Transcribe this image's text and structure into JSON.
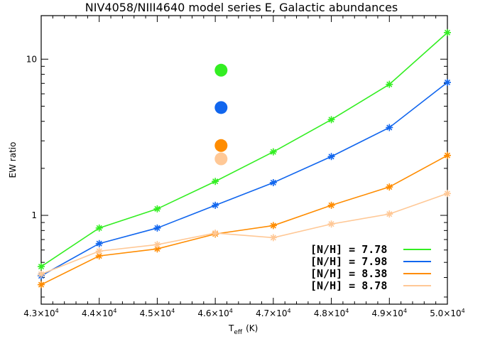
{
  "chart_data": {
    "type": "line",
    "title": "NIV4058/NIII4640 model series E, Galactic abundances",
    "xlabel_main": "T",
    "xlabel_sub": "eff",
    "xlabel_unit": "(K)",
    "ylabel": "EW ratio",
    "x": [
      43000,
      44000,
      45000,
      46000,
      47000,
      48000,
      49000,
      50000
    ],
    "xlim": [
      43000,
      50000
    ],
    "ylim": [
      0.27,
      19
    ],
    "yscale": "log",
    "xtick_labels": [
      {
        "mant": "4.3×10",
        "exp": "4"
      },
      {
        "mant": "4.4×10",
        "exp": "4"
      },
      {
        "mant": "4.5×10",
        "exp": "4"
      },
      {
        "mant": "4.6×10",
        "exp": "4"
      },
      {
        "mant": "4.7×10",
        "exp": "4"
      },
      {
        "mant": "4.8×10",
        "exp": "4"
      },
      {
        "mant": "4.9×10",
        "exp": "4"
      },
      {
        "mant": "5.0×10",
        "exp": "4"
      }
    ],
    "ytick_labels": [
      {
        "value": 1,
        "label": "1"
      },
      {
        "value": 10,
        "label": "10"
      }
    ],
    "series": [
      {
        "name": "[N/H] = 7.78",
        "color": "#33ee22",
        "values": [
          0.47,
          0.83,
          1.1,
          1.65,
          2.55,
          4.1,
          6.9,
          14.8
        ]
      },
      {
        "name": "[N/H] = 7.98",
        "color": "#1166ee",
        "values": [
          0.41,
          0.66,
          0.83,
          1.16,
          1.62,
          2.38,
          3.65,
          7.1
        ]
      },
      {
        "name": "[N/H] = 8.38",
        "color": "#ff8c00",
        "values": [
          0.36,
          0.55,
          0.61,
          0.76,
          0.86,
          1.16,
          1.52,
          2.42
        ]
      },
      {
        "name": "[N/H] = 8.78",
        "color": "#ffc896",
        "values": [
          0.42,
          0.59,
          0.65,
          0.77,
          0.72,
          0.88,
          1.02,
          1.38
        ]
      }
    ],
    "markers": [
      {
        "x": 46100,
        "y": 8.5,
        "color": "#33ee22"
      },
      {
        "x": 46100,
        "y": 4.9,
        "color": "#1166ee"
      },
      {
        "x": 46100,
        "y": 2.8,
        "color": "#ff8c00"
      },
      {
        "x": 46100,
        "y": 2.3,
        "color": "#ffc896"
      }
    ],
    "legend_position": "bottom-right",
    "grid": false
  }
}
